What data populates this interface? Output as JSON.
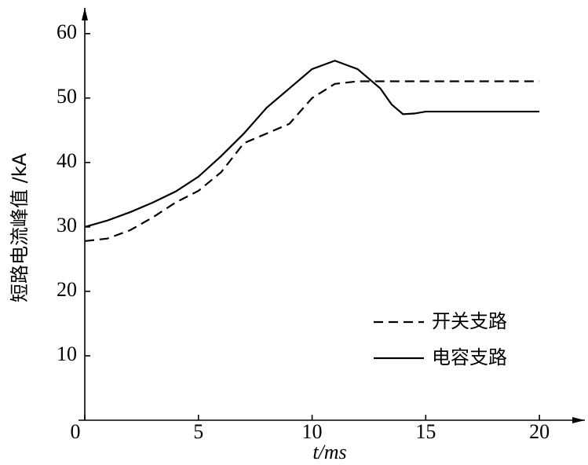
{
  "chart_data": {
    "type": "line",
    "x_label": "t/ms",
    "y_label": "短路电流峰值 /kA",
    "x": [
      0,
      1,
      2,
      3,
      4,
      5,
      6,
      7,
      8,
      9,
      10,
      11,
      12,
      13,
      13.5,
      14,
      14.5,
      15,
      16,
      17,
      18,
      19,
      20
    ],
    "series": [
      {
        "name": "开关支路",
        "color": "#000000",
        "dash": true,
        "values": [
          27.8,
          28.2,
          29.5,
          31.5,
          33.8,
          35.6,
          38.5,
          43,
          44.5,
          46,
          50,
          52.2,
          52.6,
          52.6,
          52.6,
          52.6,
          52.6,
          52.6,
          52.6,
          52.6,
          52.6,
          52.6,
          52.6
        ]
      },
      {
        "name": "电容支路",
        "color": "#000000",
        "dash": false,
        "values": [
          30,
          31,
          32.3,
          33.8,
          35.5,
          37.8,
          41,
          44.5,
          48.5,
          51.5,
          54.5,
          55.8,
          54.5,
          51.5,
          49,
          47.5,
          47.6,
          47.9,
          47.9,
          47.9,
          47.9,
          47.9,
          47.9
        ]
      }
    ],
    "xlim": [
      0,
      22
    ],
    "ylim": [
      0,
      64
    ],
    "xticks": [
      0,
      5,
      10,
      15,
      20
    ],
    "yticks": [
      10,
      20,
      30,
      40,
      50,
      60
    ],
    "grid": false
  }
}
